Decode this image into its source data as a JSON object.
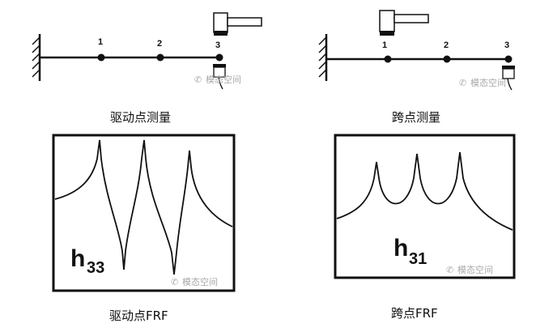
{
  "left_panel": {
    "beam": {
      "node_labels": [
        "1",
        "2",
        "3"
      ]
    },
    "caption": "驱动点测量",
    "frf": {
      "h_main": "h",
      "h_sub": "33"
    },
    "frf_caption": "驱动点FRF"
  },
  "right_panel": {
    "beam": {
      "node_labels": [
        "1",
        "2",
        "3"
      ]
    },
    "caption": "跨点测量",
    "frf": {
      "h_main": "h",
      "h_sub": "31"
    },
    "frf_caption": "跨点FRF"
  },
  "watermark": "模态空间",
  "colors": {
    "line": "#111111",
    "hammer_body": "#ffffff",
    "hammer_tip": "#111111",
    "watermark": "#a9a9a9"
  }
}
